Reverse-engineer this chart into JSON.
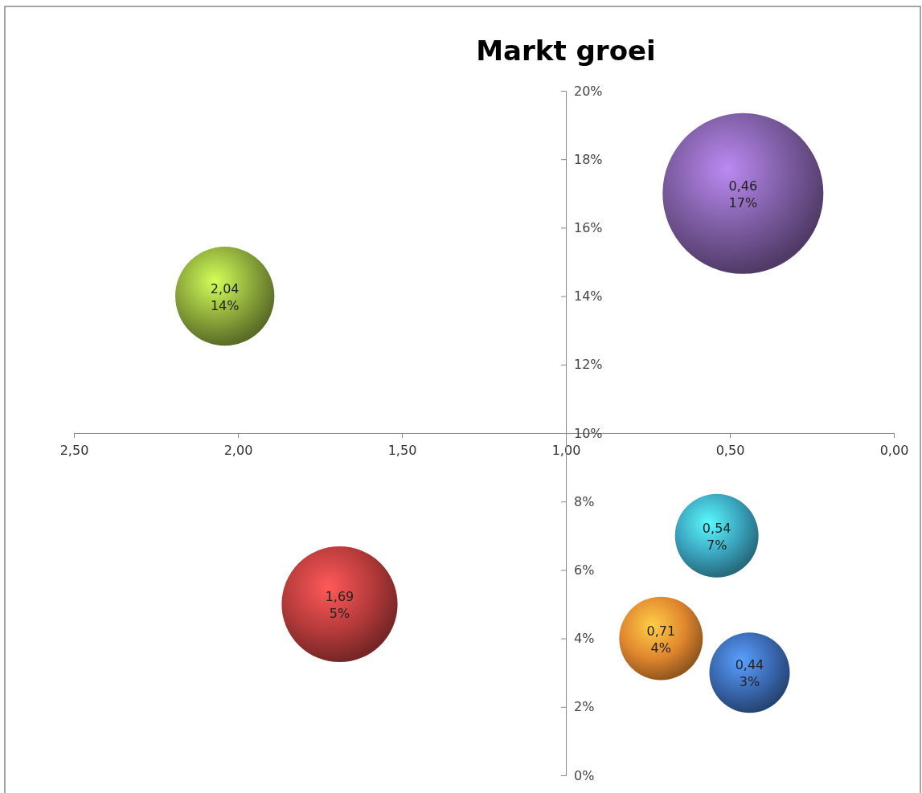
{
  "chart_data": {
    "type": "bubble",
    "title": "Markt groei",
    "x": [
      2.04,
      1.69,
      0.71,
      0.54,
      0.46,
      0.44
    ],
    "values": [
      14,
      5,
      4,
      7,
      17,
      3
    ],
    "sizes": [
      0.38,
      0.52,
      0.27,
      0.27,
      1,
      0.25
    ],
    "colors": [
      "#8aa63a",
      "#b53a3a",
      "#e0862e",
      "#3aa3bd",
      "#7a5a9e",
      "#3a68b0"
    ],
    "value_labels": [
      "2,04\n14%",
      "1,69\n5%",
      "0,71\n4%",
      "0,54\n7%",
      "0,46\n17%",
      "0,44\n3%"
    ],
    "xlim": [
      2.5,
      0
    ],
    "xticks": [
      {
        "value": 2.5,
        "label": "2,50"
      },
      {
        "value": 2,
        "label": "2,00"
      },
      {
        "value": 1.5,
        "label": "1,50"
      },
      {
        "value": 1,
        "label": "1,00"
      },
      {
        "value": 0.5,
        "label": "0,50"
      },
      {
        "value": 0,
        "label": "0,00"
      }
    ],
    "ylim": [
      0,
      20
    ],
    "yticks": [
      {
        "value": 0,
        "label": "0%"
      },
      {
        "value": 2,
        "label": "2%"
      },
      {
        "value": 4,
        "label": "4%"
      },
      {
        "value": 6,
        "label": "6%"
      },
      {
        "value": 8,
        "label": "8%"
      },
      {
        "value": 10,
        "label": "10%"
      },
      {
        "value": 12,
        "label": "12%"
      },
      {
        "value": 14,
        "label": "14%"
      },
      {
        "value": 16,
        "label": "16%"
      },
      {
        "value": 18,
        "label": "18%"
      },
      {
        "value": 20,
        "label": "20%"
      }
    ]
  }
}
